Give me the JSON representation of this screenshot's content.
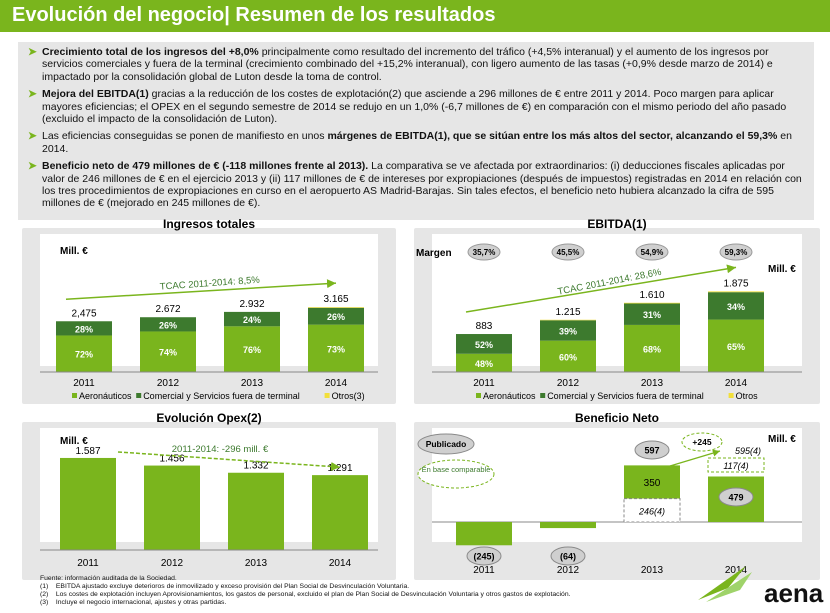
{
  "header": {
    "title": "Evolución del negocio| Resumen de los resultados"
  },
  "bullets": [
    {
      "bold": "Crecimiento total de los ingresos del +8,0%",
      "text": " principalmente como resultado del incremento del tráfico (+4,5% interanual) y el aumento de los ingresos por servicios comerciales y fuera de la terminal (crecimiento combinado del +15,2% interanual), con ligero aumento de las tasas (+0,9% desde marzo de 2014) e impactado por la consolidación global de Luton desde la toma de control."
    },
    {
      "bold": "Mejora del EBITDA(1)",
      "text": " gracias a la reducción de los costes de explotación(2) que asciende a 296 millones de € entre 2011 y 2014. Poco margen para aplicar mayores eficiencias; el OPEX en el segundo semestre de 2014 se redujo en un 1,0% (-6,7 millones de €) en comparación con el mismo periodo del año pasado (excluido el impacto de la consolidación de Luton)."
    },
    {
      "pre": "Las eficiencias conseguidas se ponen de manifiesto en unos ",
      "bold": "márgenes de EBITDA(1), que se sitúan entre los más altos del sector, alcanzando el 59,3%",
      "text": " en 2014."
    },
    {
      "bold": "Beneficio neto de 479 millones de € (-118 millones frente al 2013).",
      "text": " La comparativa se ve afectada por extraordinarios: (i) deducciones fiscales aplicadas por valor de 246 millones de € en el ejercicio 2013 y (ii) 117 millones de € de intereses por expropiaciones (después de impuestos) registradas en 2014 en relación con los tres procedimientos de expropiaciones en curso en el aeropuerto AS Madrid-Barajas. Sin tales efectos, el beneficio neto hubiera alcanzado la cifra de 595 millones de € (mejorado en 245 millones de €)."
    }
  ],
  "colors": {
    "green": "#7ab51d",
    "dark_green": "#3d7a2e",
    "light_green": "#9fd36a",
    "yellow": "#f2df3a",
    "grey_band": "#e6e6e6"
  },
  "chart_data": [
    {
      "type": "bar",
      "title": "Ingresos totales",
      "unit_label": "Mill. €",
      "categories": [
        "2011",
        "2012",
        "2013",
        "2014"
      ],
      "totals": [
        "2,475",
        "2.672",
        "2.932",
        "3.165"
      ],
      "total_values": [
        2475,
        2672,
        2932,
        3165
      ],
      "series": [
        {
          "name": "Aeronáuticos",
          "values": [
            72,
            74,
            76,
            73
          ],
          "labels": [
            "72%",
            "74%",
            "76%",
            "73%"
          ]
        },
        {
          "name": "Comercial y Servicios fuera de terminal",
          "values": [
            28,
            26,
            24,
            26
          ],
          "labels": [
            "28%",
            "26%",
            "24%",
            "26%"
          ]
        },
        {
          "name": "Otros(3)",
          "values": [
            0,
            0,
            0,
            1
          ],
          "labels": [
            "",
            "",
            "",
            ""
          ]
        }
      ],
      "trend_label": "TCAC 2011-2014: 8,5%"
    },
    {
      "type": "bar",
      "title": "EBITDA(1)",
      "unit_label": "Mill. €",
      "margin_label": "Margen",
      "margins": [
        "35,7%",
        "45,5%",
        "54,9%",
        "59,3%"
      ],
      "categories": [
        "2011",
        "2012",
        "2013",
        "2014"
      ],
      "totals": [
        "883",
        "1.215",
        "1.610",
        "1.875"
      ],
      "total_values": [
        883,
        1215,
        1610,
        1875
      ],
      "series": [
        {
          "name": "Aeronáuticos",
          "values": [
            48,
            60,
            68,
            65
          ],
          "labels": [
            "48%",
            "60%",
            "68%",
            "65%"
          ]
        },
        {
          "name": "Comercial y Servicios fuera de terminal",
          "values": [
            52,
            39,
            31,
            34
          ],
          "labels": [
            "52%",
            "39%",
            "31%",
            "34%"
          ]
        },
        {
          "name": "Otros",
          "values": [
            0,
            1,
            1,
            1
          ],
          "labels": [
            "",
            "",
            "",
            ""
          ]
        }
      ],
      "trend_label": "TCAC 2011-2014: 28,6%"
    },
    {
      "type": "bar",
      "title": "Evolución Opex(2)",
      "unit_label": "Mill. €",
      "categories": [
        "2011",
        "2012",
        "2013",
        "2014"
      ],
      "values": [
        1587,
        1456,
        1332,
        1291
      ],
      "labels": [
        "1.587",
        "1.456",
        "1.332",
        "1.291"
      ],
      "trend_label": "2011-2014: -296 mill. €"
    },
    {
      "type": "bar",
      "title": "Beneficio Neto",
      "unit_label": "Mill. €",
      "categories": [
        "2011",
        "2012",
        "2013",
        "2014"
      ],
      "values": [
        -245,
        -64,
        597,
        479
      ],
      "labels": [
        "(245)",
        "(64)",
        "597",
        "479"
      ],
      "extras": {
        "published_label": "Publicado",
        "comparable_label": "En base comparable",
        "bar2013_inner": "350",
        "bar2013_below": "246(4)",
        "bar2014_comparable": "595(4)",
        "bar2014_extra": "117(4)",
        "delta": "+245"
      }
    }
  ],
  "footnotes": {
    "source": "Fuente: información auditada de la Sociedad.",
    "notes": [
      {
        "num": "(1)",
        "text": "EBITDA ajustado excluye deterioros de inmovilizado y exceso provisión del Plan Social de Desvinculación Voluntaria."
      },
      {
        "num": "(2)",
        "text": "Los costes de explotación incluyen Aprovisionamientos, los gastos de personal, excluido el plan de Plan Social de Desvinculación Voluntaria y otros gastos de explotación."
      },
      {
        "num": "(3)",
        "text": "Incluye el negocio internacional, ajustes y otras partidas."
      }
    ]
  },
  "logo": {
    "text": "aena"
  }
}
